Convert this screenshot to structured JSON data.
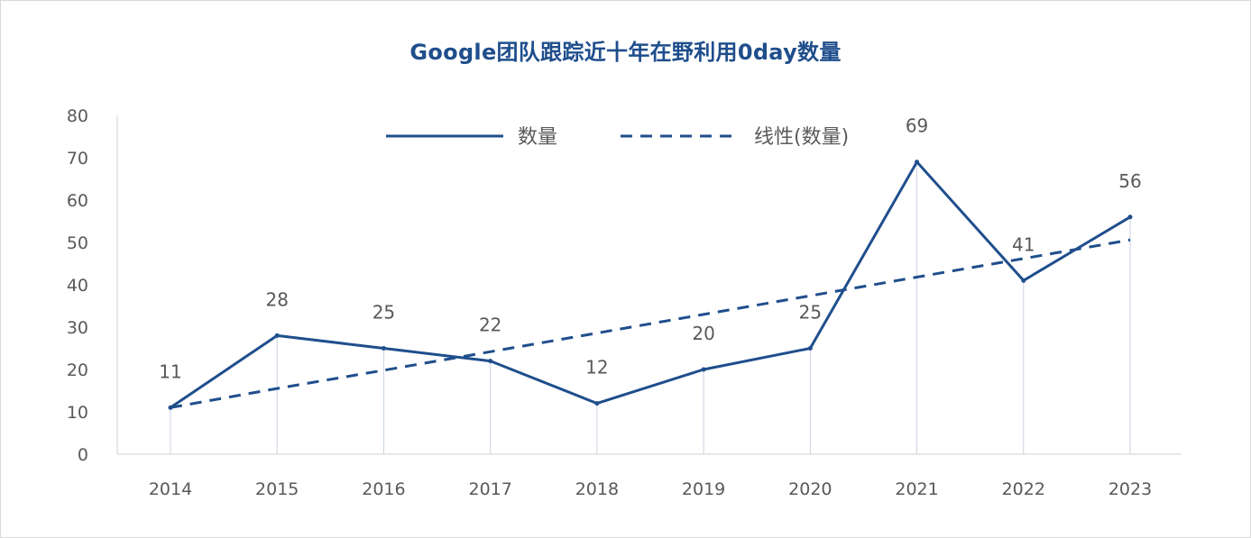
{
  "chart_data": {
    "type": "line",
    "title": "Google团队跟踪近十年在野利用0day数量",
    "categories": [
      "2014",
      "2015",
      "2016",
      "2017",
      "2018",
      "2019",
      "2020",
      "2021",
      "2022",
      "2023"
    ],
    "series": [
      {
        "name": "数量",
        "values": [
          11,
          28,
          25,
          22,
          12,
          20,
          25,
          69,
          41,
          56
        ],
        "style": "solid"
      },
      {
        "name": "线性(数量)",
        "values": [
          11,
          15.5,
          19.8,
          24.2,
          28.6,
          33,
          37.4,
          41.8,
          46.2,
          50.6
        ],
        "style": "dashed"
      }
    ],
    "data_labels": [
      "11",
      "28",
      "25",
      "22",
      "12",
      "20",
      "25",
      "69",
      "41",
      "56"
    ],
    "yticks": [
      "0",
      "10",
      "20",
      "30",
      "40",
      "50",
      "60",
      "70",
      "80"
    ],
    "ylim": [
      0,
      80
    ],
    "legend_position": "top-center",
    "grid": false,
    "colors": {
      "line": "#1f4e8c",
      "axis": "#d9d9d9",
      "dropline": "#c8d3e2"
    }
  }
}
